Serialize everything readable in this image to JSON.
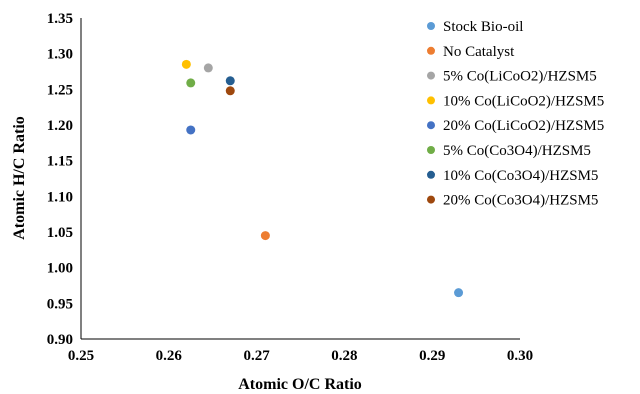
{
  "chart_data": {
    "type": "scatter",
    "title": "",
    "xlabel": "Atomic O/C Ratio",
    "ylabel": "Atomic H/C Ratio",
    "xlim": [
      0.25,
      0.3
    ],
    "ylim": [
      0.9,
      1.35
    ],
    "x_ticks": [
      "0.25",
      "0.26",
      "0.27",
      "0.28",
      "0.29",
      "0.30"
    ],
    "y_ticks": [
      "0.90",
      "0.95",
      "1.00",
      "1.05",
      "1.10",
      "1.15",
      "1.20",
      "1.25",
      "1.30",
      "1.35"
    ],
    "grid": false,
    "legend_position": "right",
    "series": [
      {
        "name": "Stock Bio-oil",
        "color": "#5B9BD5",
        "x": 0.293,
        "y": 0.965
      },
      {
        "name": "No Catalyst",
        "color": "#ED7D31",
        "x": 0.271,
        "y": 1.045
      },
      {
        "name": "5% Co(LiCoO2)/HZSM5",
        "color": "#A5A5A5",
        "x": 0.2645,
        "y": 1.28
      },
      {
        "name": "10% Co(LiCoO2)/HZSM5",
        "color": "#FFC000",
        "x": 0.262,
        "y": 1.285
      },
      {
        "name": "20% Co(LiCoO2)/HZSM5",
        "color": "#4472C4",
        "x": 0.2625,
        "y": 1.193
      },
      {
        "name": "5% Co(Co3O4)/HZSM5",
        "color": "#70AD47",
        "x": 0.2625,
        "y": 1.259
      },
      {
        "name": "10% Co(Co3O4)/HZSM5",
        "color": "#255E91",
        "x": 0.267,
        "y": 1.262
      },
      {
        "name": "20% Co(Co3O4)/HZSM5",
        "color": "#9E480E",
        "x": 0.267,
        "y": 1.248
      }
    ]
  }
}
